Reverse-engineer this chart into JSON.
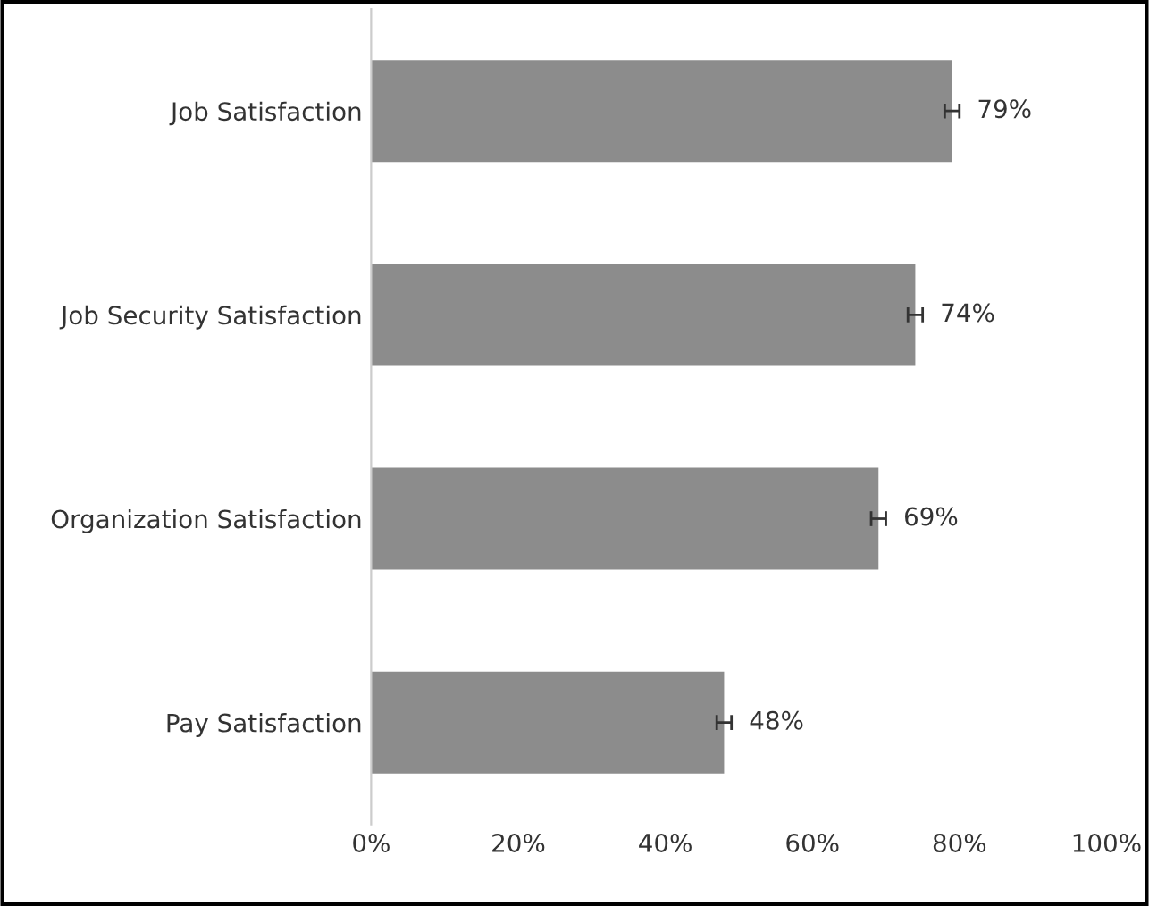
{
  "chart_data": {
    "type": "bar",
    "orientation": "horizontal",
    "categories": [
      "Job Satisfaction",
      "Job Security Satisfaction",
      "Organization Satisfaction",
      "Pay Satisfaction"
    ],
    "values": [
      79,
      74,
      69,
      48
    ],
    "color": "#8c8c8c",
    "errors": [
      1,
      1,
      1,
      1
    ],
    "value_labels": [
      "79%",
      "74%",
      "69%",
      "48%"
    ],
    "xlim": [
      0,
      100
    ],
    "xticks": [
      {
        "value": 0,
        "label": "0%"
      },
      {
        "value": 20,
        "label": "20%"
      },
      {
        "value": 40,
        "label": "40%"
      },
      {
        "value": 60,
        "label": "60%"
      },
      {
        "value": 80,
        "label": "80%"
      },
      {
        "value": 100,
        "label": "100%"
      }
    ],
    "grid": false,
    "legend": false
  }
}
